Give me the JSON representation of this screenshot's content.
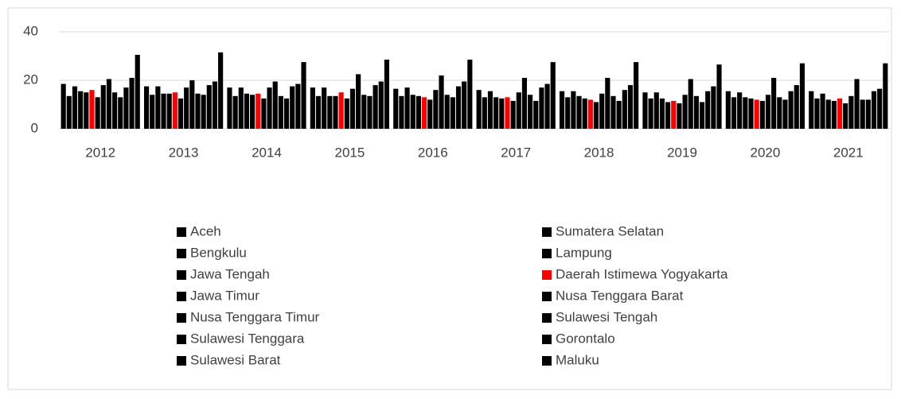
{
  "chart_data": {
    "type": "bar",
    "categories": [
      "2012",
      "2013",
      "2014",
      "2015",
      "2016",
      "2017",
      "2018",
      "2019",
      "2020",
      "2021"
    ],
    "series": [
      {
        "name": "Aceh",
        "color": "#000000",
        "values": [
          18.5,
          17.5,
          17,
          17,
          16.5,
          16,
          15.5,
          15,
          15.5,
          15.5
        ]
      },
      {
        "name": "Sumatera Selatan",
        "color": "#000000",
        "values": [
          13.5,
          14,
          13.5,
          13.5,
          13.5,
          13,
          13,
          12.5,
          13,
          12.5
        ]
      },
      {
        "name": "Bengkulu",
        "color": "#000000",
        "values": [
          17.5,
          17.5,
          17,
          17,
          17,
          15.5,
          15.5,
          15,
          15,
          14.5
        ]
      },
      {
        "name": "Lampung",
        "color": "#000000",
        "values": [
          15.5,
          14.5,
          14.5,
          13.5,
          14,
          13,
          13.5,
          12.5,
          13,
          12
        ]
      },
      {
        "name": "Jawa Tengah",
        "color": "#000000",
        "values": [
          15,
          14.5,
          14,
          13.5,
          13.5,
          12.5,
          12.5,
          11,
          12.5,
          11.5
        ]
      },
      {
        "name": "Daerah Istimewa Yogyakarta",
        "color": "#ff0000",
        "values": [
          16,
          15,
          14.5,
          15,
          13,
          13,
          12,
          11.5,
          12,
          12.5
        ]
      },
      {
        "name": "Jawa Timur",
        "color": "#000000",
        "values": [
          13,
          12.5,
          12.5,
          12.5,
          12,
          11.5,
          11,
          10.5,
          11.5,
          10.5
        ]
      },
      {
        "name": "Nusa Tenggara Barat",
        "color": "#000000",
        "values": [
          18,
          17,
          17,
          16.5,
          16,
          15,
          14.5,
          14,
          14,
          13.5
        ]
      },
      {
        "name": "Nusa Tenggara Timur",
        "color": "#000000",
        "values": [
          20.5,
          20,
          19.5,
          22.5,
          22,
          21,
          21,
          20.5,
          21,
          20.5
        ]
      },
      {
        "name": "Sulawesi Tengah",
        "color": "#000000",
        "values": [
          15,
          14.5,
          13.5,
          14,
          14,
          14,
          13.5,
          13.5,
          13,
          12
        ]
      },
      {
        "name": "Sulawesi Tenggara",
        "color": "#000000",
        "values": [
          13,
          14,
          12.5,
          13.5,
          13,
          11.5,
          11.5,
          11,
          12,
          12
        ]
      },
      {
        "name": "Gorontalo",
        "color": "#000000",
        "values": [
          17,
          18,
          17.5,
          18,
          17.5,
          17,
          16,
          15.5,
          15.5,
          15.5
        ]
      },
      {
        "name": "Sulawesi Barat",
        "color": "#000000",
        "values": [
          21,
          19.5,
          18.5,
          19.5,
          19.5,
          18.5,
          18,
          17.5,
          18,
          16.5
        ]
      },
      {
        "name": "Maluku",
        "color": "#000000",
        "values": [
          30.5,
          31.5,
          27.5,
          28.5,
          28.5,
          27.5,
          27.5,
          26.5,
          27,
          27
        ]
      }
    ],
    "ylim": [
      0,
      40
    ],
    "yticks": [
      0,
      20,
      40
    ],
    "grid": true
  }
}
